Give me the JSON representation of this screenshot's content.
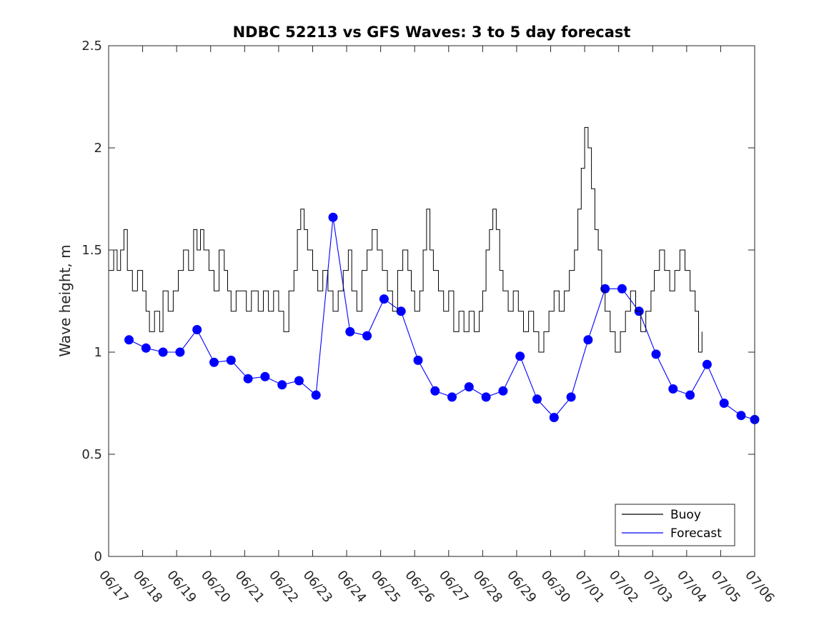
{
  "chart_data": {
    "type": "line",
    "title": "NDBC 52213 vs GFS Waves: 3 to 5 day forecast",
    "xlabel": "",
    "ylabel": "Wave height, m",
    "ylim": [
      0,
      2.5
    ],
    "xlim": [
      "06/17",
      "07/06"
    ],
    "grid": false,
    "legend_position": "bottom-right",
    "x_ticks": [
      "06/17",
      "06/18",
      "06/19",
      "06/20",
      "06/21",
      "06/22",
      "06/23",
      "06/24",
      "06/25",
      "06/26",
      "06/27",
      "06/28",
      "06/29",
      "06/30",
      "07/01",
      "07/02",
      "07/03",
      "07/04",
      "07/05",
      "07/06"
    ],
    "y_ticks": [
      "0",
      "0.5",
      "1",
      "1.5",
      "2",
      "2.5"
    ],
    "colors": {
      "buoy": "#000000",
      "forecast": "#0000ff"
    },
    "legend": [
      {
        "name": "Buoy",
        "color": "#000000"
      },
      {
        "name": "Forecast",
        "color": "#0000ff"
      }
    ],
    "series": [
      {
        "name": "Buoy",
        "x_unit": "days since 06/17",
        "points": [
          [
            0,
            1.4
          ],
          [
            0.15,
            1.5
          ],
          [
            0.25,
            1.4
          ],
          [
            0.35,
            1.5
          ],
          [
            0.45,
            1.6
          ],
          [
            0.55,
            1.4
          ],
          [
            0.7,
            1.3
          ],
          [
            0.85,
            1.4
          ],
          [
            1.0,
            1.3
          ],
          [
            1.1,
            1.2
          ],
          [
            1.2,
            1.1
          ],
          [
            1.35,
            1.2
          ],
          [
            1.5,
            1.1
          ],
          [
            1.6,
            1.3
          ],
          [
            1.75,
            1.2
          ],
          [
            1.9,
            1.3
          ],
          [
            2.05,
            1.4
          ],
          [
            2.2,
            1.5
          ],
          [
            2.35,
            1.4
          ],
          [
            2.5,
            1.6
          ],
          [
            2.6,
            1.5
          ],
          [
            2.7,
            1.6
          ],
          [
            2.8,
            1.5
          ],
          [
            2.95,
            1.4
          ],
          [
            3.1,
            1.3
          ],
          [
            3.25,
            1.5
          ],
          [
            3.4,
            1.4
          ],
          [
            3.5,
            1.3
          ],
          [
            3.6,
            1.2
          ],
          [
            3.75,
            1.3
          ],
          [
            3.9,
            1.3
          ],
          [
            4.05,
            1.2
          ],
          [
            4.2,
            1.3
          ],
          [
            4.4,
            1.2
          ],
          [
            4.55,
            1.3
          ],
          [
            4.7,
            1.2
          ],
          [
            4.85,
            1.3
          ],
          [
            5.0,
            1.2
          ],
          [
            5.15,
            1.1
          ],
          [
            5.3,
            1.3
          ],
          [
            5.45,
            1.4
          ],
          [
            5.55,
            1.6
          ],
          [
            5.65,
            1.7
          ],
          [
            5.75,
            1.6
          ],
          [
            5.85,
            1.5
          ],
          [
            6.0,
            1.4
          ],
          [
            6.15,
            1.3
          ],
          [
            6.3,
            1.4
          ],
          [
            6.45,
            1.3
          ],
          [
            6.6,
            1.2
          ],
          [
            6.75,
            1.3
          ],
          [
            6.9,
            1.4
          ],
          [
            7.05,
            1.5
          ],
          [
            7.15,
            1.3
          ],
          [
            7.3,
            1.2
          ],
          [
            7.45,
            1.4
          ],
          [
            7.6,
            1.5
          ],
          [
            7.75,
            1.6
          ],
          [
            7.9,
            1.5
          ],
          [
            8.05,
            1.4
          ],
          [
            8.2,
            1.3
          ],
          [
            8.35,
            1.2
          ],
          [
            8.5,
            1.4
          ],
          [
            8.65,
            1.5
          ],
          [
            8.8,
            1.4
          ],
          [
            8.9,
            1.3
          ],
          [
            9.0,
            1.2
          ],
          [
            9.15,
            1.3
          ],
          [
            9.25,
            1.5
          ],
          [
            9.35,
            1.7
          ],
          [
            9.45,
            1.5
          ],
          [
            9.55,
            1.4
          ],
          [
            9.7,
            1.3
          ],
          [
            9.85,
            1.2
          ],
          [
            10.0,
            1.3
          ],
          [
            10.15,
            1.1
          ],
          [
            10.3,
            1.2
          ],
          [
            10.45,
            1.1
          ],
          [
            10.6,
            1.2
          ],
          [
            10.75,
            1.1
          ],
          [
            10.9,
            1.2
          ],
          [
            11.0,
            1.3
          ],
          [
            11.1,
            1.5
          ],
          [
            11.2,
            1.6
          ],
          [
            11.3,
            1.7
          ],
          [
            11.4,
            1.6
          ],
          [
            11.5,
            1.4
          ],
          [
            11.6,
            1.3
          ],
          [
            11.75,
            1.2
          ],
          [
            11.9,
            1.3
          ],
          [
            12.05,
            1.2
          ],
          [
            12.2,
            1.1
          ],
          [
            12.35,
            1.2
          ],
          [
            12.5,
            1.1
          ],
          [
            12.65,
            1.0
          ],
          [
            12.8,
            1.1
          ],
          [
            12.95,
            1.2
          ],
          [
            13.1,
            1.3
          ],
          [
            13.25,
            1.2
          ],
          [
            13.4,
            1.3
          ],
          [
            13.55,
            1.4
          ],
          [
            13.7,
            1.5
          ],
          [
            13.8,
            1.7
          ],
          [
            13.9,
            1.9
          ],
          [
            14.0,
            2.1
          ],
          [
            14.1,
            2.0
          ],
          [
            14.2,
            1.8
          ],
          [
            14.3,
            1.6
          ],
          [
            14.4,
            1.5
          ],
          [
            14.5,
            1.3
          ],
          [
            14.6,
            1.2
          ],
          [
            14.75,
            1.1
          ],
          [
            14.9,
            1.0
          ],
          [
            15.05,
            1.1
          ],
          [
            15.2,
            1.2
          ],
          [
            15.35,
            1.3
          ],
          [
            15.5,
            1.2
          ],
          [
            15.65,
            1.1
          ],
          [
            15.8,
            1.2
          ],
          [
            15.95,
            1.3
          ],
          [
            16.05,
            1.4
          ],
          [
            16.2,
            1.5
          ],
          [
            16.35,
            1.4
          ],
          [
            16.5,
            1.3
          ],
          [
            16.65,
            1.4
          ],
          [
            16.8,
            1.5
          ],
          [
            16.95,
            1.4
          ],
          [
            17.1,
            1.3
          ],
          [
            17.25,
            1.2
          ],
          [
            17.35,
            1.0
          ],
          [
            17.45,
            1.1
          ]
        ]
      },
      {
        "name": "Forecast",
        "x_unit": "days since 06/17",
        "points": [
          [
            0.6,
            1.06
          ],
          [
            1.1,
            1.02
          ],
          [
            1.6,
            1.0
          ],
          [
            2.1,
            1.0
          ],
          [
            2.6,
            1.11
          ],
          [
            3.1,
            0.95
          ],
          [
            3.6,
            0.96
          ],
          [
            4.1,
            0.87
          ],
          [
            4.6,
            0.88
          ],
          [
            5.1,
            0.84
          ],
          [
            5.6,
            0.86
          ],
          [
            6.1,
            0.79
          ],
          [
            6.6,
            1.66
          ],
          [
            7.1,
            1.1
          ],
          [
            7.6,
            1.08
          ],
          [
            8.1,
            1.26
          ],
          [
            8.6,
            1.2
          ],
          [
            9.1,
            0.96
          ],
          [
            9.6,
            0.81
          ],
          [
            10.1,
            0.78
          ],
          [
            10.6,
            0.83
          ],
          [
            11.1,
            0.78
          ],
          [
            11.6,
            0.81
          ],
          [
            12.1,
            0.98
          ],
          [
            12.6,
            0.77
          ],
          [
            13.1,
            0.68
          ],
          [
            13.6,
            0.78
          ],
          [
            14.1,
            1.06
          ],
          [
            14.6,
            1.31
          ],
          [
            15.1,
            1.31
          ],
          [
            15.6,
            1.2
          ],
          [
            16.1,
            0.99
          ],
          [
            16.6,
            0.82
          ],
          [
            17.1,
            0.79
          ],
          [
            17.6,
            0.94
          ],
          [
            18.1,
            0.75
          ],
          [
            18.6,
            0.69
          ],
          [
            19.0,
            0.67
          ]
        ]
      }
    ]
  }
}
